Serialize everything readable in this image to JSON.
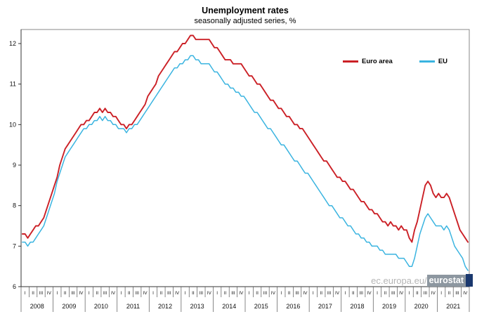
{
  "title": "Unemployment rates",
  "subtitle": "seasonally adjusted series, %",
  "watermark": {
    "prefix": "ec.europa.eu/",
    "brand": "eurostat",
    "brand_bg": "#8d97a0",
    "flag_color": "#1a386e"
  },
  "chart_data": {
    "type": "line",
    "title": "Unemployment rates",
    "subtitle": "seasonally adjusted series, %",
    "xlabel": "",
    "ylabel": "",
    "ylim": [
      6,
      12
    ],
    "yticks": [
      6,
      7,
      8,
      9,
      10,
      11,
      12
    ],
    "grid": false,
    "legend_position": "top-right-inside",
    "frequency": "monthly",
    "x_start": "2008-01",
    "x_end": "2021-12",
    "years": [
      2008,
      2009,
      2010,
      2011,
      2012,
      2013,
      2014,
      2015,
      2016,
      2017,
      2018,
      2019,
      2020,
      2021
    ],
    "quarter_labels": [
      "I",
      "II",
      "III",
      "IV"
    ],
    "series": [
      {
        "name": "Euro area",
        "color": "#cb2026",
        "values": [
          7.3,
          7.3,
          7.2,
          7.3,
          7.4,
          7.5,
          7.5,
          7.6,
          7.7,
          7.9,
          8.1,
          8.3,
          8.5,
          8.7,
          9.0,
          9.2,
          9.4,
          9.5,
          9.6,
          9.7,
          9.8,
          9.9,
          10.0,
          10.0,
          10.1,
          10.1,
          10.2,
          10.3,
          10.3,
          10.4,
          10.3,
          10.4,
          10.3,
          10.3,
          10.2,
          10.2,
          10.1,
          10.0,
          10.0,
          9.9,
          10.0,
          10.0,
          10.1,
          10.2,
          10.3,
          10.4,
          10.5,
          10.7,
          10.8,
          10.9,
          11.0,
          11.2,
          11.3,
          11.4,
          11.5,
          11.6,
          11.7,
          11.8,
          11.8,
          11.9,
          12.0,
          12.0,
          12.1,
          12.2,
          12.2,
          12.1,
          12.1,
          12.1,
          12.1,
          12.1,
          12.1,
          12.0,
          11.9,
          11.9,
          11.8,
          11.7,
          11.6,
          11.6,
          11.6,
          11.5,
          11.5,
          11.5,
          11.5,
          11.4,
          11.3,
          11.2,
          11.2,
          11.1,
          11.0,
          11.0,
          10.9,
          10.8,
          10.7,
          10.6,
          10.6,
          10.5,
          10.4,
          10.4,
          10.3,
          10.2,
          10.2,
          10.1,
          10.0,
          10.0,
          9.9,
          9.9,
          9.8,
          9.7,
          9.6,
          9.5,
          9.4,
          9.3,
          9.2,
          9.1,
          9.1,
          9.0,
          8.9,
          8.8,
          8.7,
          8.7,
          8.6,
          8.6,
          8.5,
          8.4,
          8.4,
          8.3,
          8.2,
          8.1,
          8.1,
          8.0,
          7.9,
          7.9,
          7.8,
          7.8,
          7.7,
          7.6,
          7.6,
          7.5,
          7.6,
          7.5,
          7.5,
          7.4,
          7.5,
          7.4,
          7.4,
          7.2,
          7.1,
          7.4,
          7.6,
          7.9,
          8.2,
          8.5,
          8.6,
          8.5,
          8.3,
          8.2,
          8.3,
          8.2,
          8.2,
          8.3,
          8.2,
          8.0,
          7.8,
          7.6,
          7.4,
          7.3,
          7.2,
          7.1
        ]
      },
      {
        "name": "EU",
        "color": "#3ab4e0",
        "values": [
          7.1,
          7.1,
          7.0,
          7.1,
          7.1,
          7.2,
          7.3,
          7.4,
          7.5,
          7.7,
          7.9,
          8.1,
          8.3,
          8.6,
          8.8,
          9.0,
          9.2,
          9.3,
          9.4,
          9.5,
          9.6,
          9.7,
          9.8,
          9.9,
          9.9,
          10.0,
          10.0,
          10.1,
          10.1,
          10.2,
          10.1,
          10.2,
          10.1,
          10.1,
          10.0,
          10.0,
          9.9,
          9.9,
          9.9,
          9.8,
          9.9,
          9.9,
          10.0,
          10.0,
          10.1,
          10.2,
          10.3,
          10.4,
          10.5,
          10.6,
          10.7,
          10.8,
          10.9,
          11.0,
          11.1,
          11.2,
          11.3,
          11.4,
          11.4,
          11.5,
          11.5,
          11.6,
          11.6,
          11.7,
          11.7,
          11.6,
          11.6,
          11.5,
          11.5,
          11.5,
          11.5,
          11.4,
          11.3,
          11.3,
          11.2,
          11.1,
          11.0,
          11.0,
          10.9,
          10.9,
          10.8,
          10.8,
          10.7,
          10.7,
          10.6,
          10.5,
          10.4,
          10.3,
          10.3,
          10.2,
          10.1,
          10.0,
          9.9,
          9.9,
          9.8,
          9.7,
          9.6,
          9.5,
          9.5,
          9.4,
          9.3,
          9.2,
          9.1,
          9.1,
          9.0,
          8.9,
          8.8,
          8.8,
          8.7,
          8.6,
          8.5,
          8.4,
          8.3,
          8.2,
          8.1,
          8.0,
          8.0,
          7.9,
          7.8,
          7.7,
          7.7,
          7.6,
          7.5,
          7.5,
          7.4,
          7.3,
          7.3,
          7.2,
          7.2,
          7.1,
          7.1,
          7.0,
          7.0,
          7.0,
          6.9,
          6.9,
          6.8,
          6.8,
          6.8,
          6.8,
          6.8,
          6.7,
          6.7,
          6.7,
          6.6,
          6.5,
          6.5,
          6.7,
          7.0,
          7.3,
          7.5,
          7.7,
          7.8,
          7.7,
          7.6,
          7.5,
          7.5,
          7.5,
          7.4,
          7.5,
          7.4,
          7.2,
          7.0,
          6.9,
          6.8,
          6.7,
          6.5,
          6.4
        ]
      }
    ]
  }
}
